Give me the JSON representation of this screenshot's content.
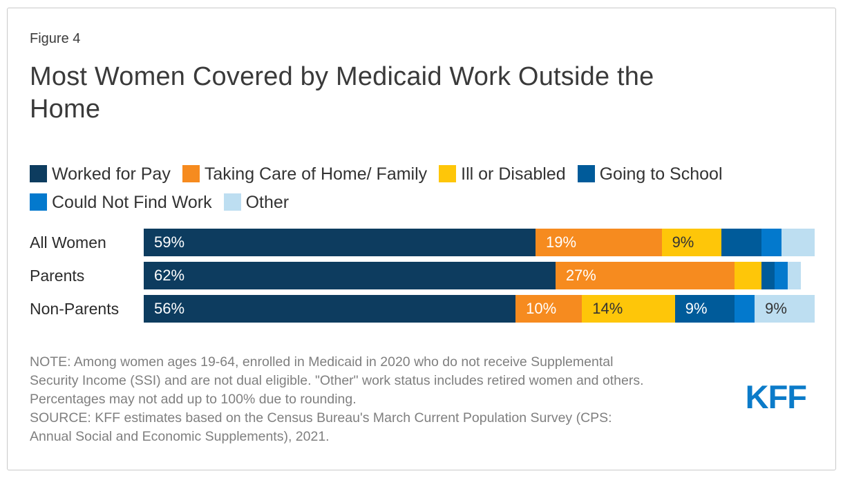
{
  "figure_label": "Figure 4",
  "title": "Most Women Covered by Medicaid Work Outside the Home",
  "chart_data": {
    "type": "bar",
    "subtype": "horizontal-stacked",
    "categories": [
      "All Women",
      "Parents",
      "Non-Parents"
    ],
    "series": [
      {
        "name": "Worked for Pay",
        "color": "#0d3c5f",
        "text_color": "#ffffff",
        "values": [
          59,
          62,
          56
        ]
      },
      {
        "name": "Taking Care of Home/ Family",
        "color": "#f68b1f",
        "text_color": "#ffffff",
        "values": [
          19,
          27,
          10
        ]
      },
      {
        "name": "Ill or Disabled",
        "color": "#fec609",
        "text_color": "#333333",
        "values": [
          9,
          4,
          14
        ]
      },
      {
        "name": "Going to School",
        "color": "#005b9a",
        "text_color": "#ffffff",
        "values": [
          6,
          2,
          9
        ]
      },
      {
        "name": "Could Not Find Work",
        "color": "#0379cd",
        "text_color": "#ffffff",
        "values": [
          3,
          2,
          3
        ]
      },
      {
        "name": "Other",
        "color": "#bddef1",
        "text_color": "#333333",
        "values": [
          5,
          2,
          9
        ]
      }
    ],
    "value_suffix": "%",
    "label_min_pct": 9,
    "xlim": [
      0,
      100
    ],
    "grid": false,
    "legend_position": "top",
    "title": "Most Women Covered by Medicaid Work Outside the Home"
  },
  "note": {
    "lines": [
      "NOTE: Among women ages 19-64, enrolled in Medicaid in 2020 who do not receive Supplemental",
      "Security Income (SSI) and are not dual eligible. \"Other\" work status includes retired women and others.",
      "Percentages may not add up to 100% due to rounding.",
      "SOURCE: KFF estimates based on the Census Bureau's March Current Population Survey (CPS:",
      "Annual Social and Economic Supplements), 2021."
    ]
  },
  "logo_text": "KFF"
}
